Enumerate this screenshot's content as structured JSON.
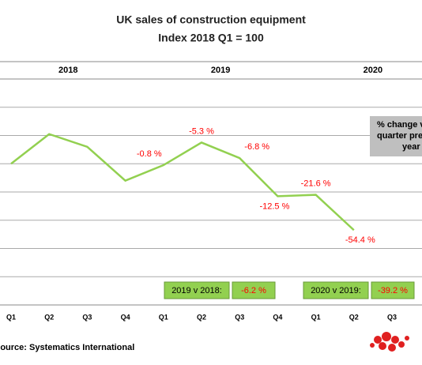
{
  "chart_data": {
    "type": "line",
    "title": "UK sales of construction equipment",
    "subtitle": "Index 2018 Q1 = 100",
    "groups": [
      "2018",
      "2019",
      "2020"
    ],
    "categories": [
      "Q1",
      "Q2",
      "Q3",
      "Q4",
      "Q1",
      "Q2",
      "Q3",
      "Q4",
      "Q1",
      "Q2",
      "Q3"
    ],
    "series": [
      {
        "name": "Index",
        "color": "#92d050",
        "values": [
          100,
          121,
          112,
          88,
          99,
          115,
          104,
          77,
          78,
          53,
          null
        ]
      }
    ],
    "changes": {
      "values": [
        null,
        null,
        null,
        null,
        -0.8,
        -5.3,
        -6.8,
        -12.5,
        -21.6,
        -54.4,
        null
      ],
      "value_labels": [
        null,
        null,
        null,
        null,
        "-0.8 %",
        "-5.3 %",
        "-6.8 %",
        "-12.5 %",
        "-21.6 %",
        "-54.4 %",
        null
      ]
    },
    "comparisons": {
      "labels": [
        "2019 v 2018:",
        "2020 v 2019:"
      ],
      "values": [
        -6.2,
        -39.2
      ],
      "value_labels": [
        "-6.2 %",
        "-39.2 %"
      ]
    },
    "note": [
      "% change v",
      "quarter pre",
      "year"
    ],
    "ylim": [
      0,
      160
    ],
    "yticks": [
      0,
      20,
      40,
      60,
      80,
      100,
      120,
      140
    ],
    "grid": true,
    "source": "Source: Systematics International"
  }
}
